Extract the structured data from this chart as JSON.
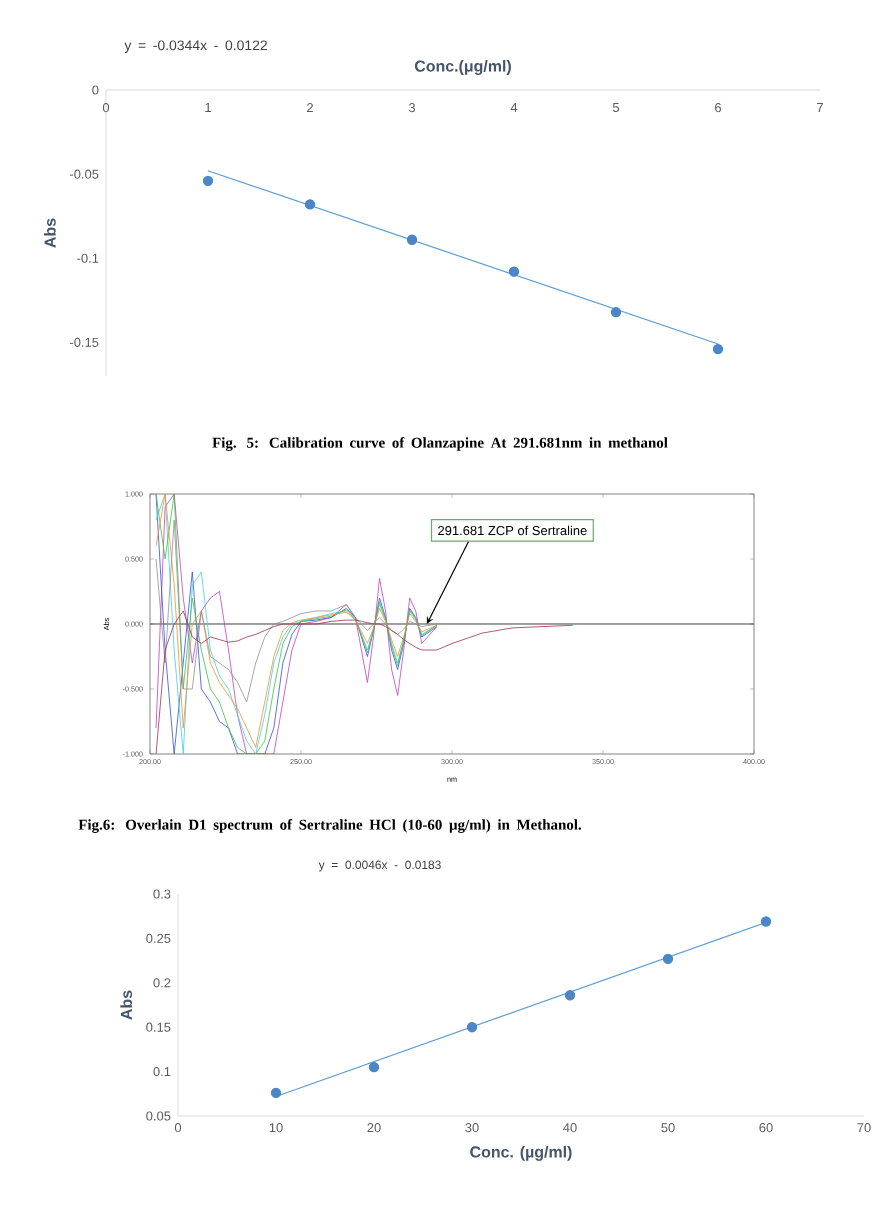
{
  "chart_data": [
    {
      "type": "scatter",
      "xlabel": "Conc.(μg/ml)",
      "ylabel": "Abs",
      "xlim": [
        0,
        7
      ],
      "xticks": [
        0,
        1,
        2,
        3,
        4,
        5,
        6,
        7
      ],
      "ylim": [
        -0.17,
        0
      ],
      "yticks": [
        0,
        -0.05,
        -0.1,
        -0.15
      ],
      "series": [
        {
          "type": "scatter",
          "marker": "circle",
          "color": "#4a86c8",
          "x": [
            1,
            2,
            3,
            4,
            5,
            6
          ],
          "values": [
            -0.054,
            -0.068,
            -0.089,
            -0.108,
            -0.132,
            -0.154
          ]
        },
        {
          "type": "line",
          "marker": "none",
          "color": "#5b9bd5",
          "x": [
            1,
            6
          ],
          "values": [
            -0.048,
            -0.151
          ]
        }
      ],
      "annotations": [
        "y = -0.0344x - 0.0122",
        "Fig. 5: Calibration curve of Olanzapine At 291.681nm in methanol"
      ]
    },
    {
      "type": "line",
      "xlabel": "nm",
      "ylabel": "Abs",
      "xlim": [
        200,
        400
      ],
      "ylim": [
        -1,
        1
      ],
      "xticks": [
        {
          "value": 200,
          "label": "200.00"
        },
        {
          "value": 250,
          "label": "250.00"
        },
        {
          "value": 300,
          "label": "300.00"
        },
        {
          "value": 350,
          "label": "350.00"
        },
        {
          "value": 400,
          "label": "400.00"
        }
      ],
      "yticks": [
        {
          "value": -1,
          "label": "-1.000"
        },
        {
          "value": -0.5,
          "label": "-0.500"
        },
        {
          "value": 0,
          "label": "0.000"
        },
        {
          "value": 0.5,
          "label": "0.500"
        },
        {
          "value": 1,
          "label": "1.000"
        }
      ],
      "x": [
        202,
        205,
        208,
        211,
        214,
        217,
        220,
        223,
        226,
        229,
        232,
        235,
        238,
        241,
        244,
        247,
        250,
        255,
        260,
        265,
        268,
        270,
        272,
        274,
        276,
        278,
        280,
        282,
        284,
        286,
        288,
        290,
        295,
        300,
        310,
        320,
        340
      ],
      "series": [
        {
          "color": "#c040c0",
          "values": [
            -0.8,
            0.9,
            1,
            0.2,
            -0.3,
            0.1,
            0.2,
            0.25,
            -0.2,
            -0.7,
            -1,
            -1,
            -1,
            -1,
            -0.6,
            -0.2,
            0,
            0.02,
            0.05,
            0.15,
            0.05,
            -0.2,
            -0.45,
            -0.1,
            0.35,
            0.1,
            -0.35,
            -0.55,
            -0.2,
            0.2,
            0.1,
            -0.15,
            -0.02,
            null,
            null,
            null,
            null
          ]
        },
        {
          "color": "#3050e0",
          "values": [
            1,
            -0.2,
            -1,
            -0.3,
            0.4,
            -0.5,
            -0.6,
            -0.75,
            -0.8,
            -1,
            -1,
            -1,
            -1,
            -0.8,
            -0.3,
            -0.08,
            0.02,
            0.03,
            0.05,
            0.12,
            0.05,
            -0.1,
            -0.25,
            -0.05,
            0.2,
            0.05,
            -0.2,
            -0.35,
            -0.15,
            0.12,
            0.05,
            -0.1,
            -0.02,
            null,
            null,
            null,
            null
          ]
        },
        {
          "color": "#40d0e0",
          "values": [
            0.8,
            1,
            -0.2,
            -1,
            0.3,
            0.4,
            -0.2,
            -0.4,
            -0.5,
            -0.7,
            -0.9,
            -1,
            -0.7,
            -0.3,
            -0.1,
            0,
            0.02,
            0.05,
            0.08,
            0.1,
            0.04,
            -0.08,
            -0.2,
            -0.04,
            0.15,
            0.03,
            -0.15,
            -0.3,
            -0.12,
            0.1,
            0.03,
            -0.08,
            -0.01,
            null,
            null,
            null,
            null
          ]
        },
        {
          "color": "#40c040",
          "values": [
            1,
            0.5,
            1,
            -0.5,
            0.2,
            -0.2,
            -0.5,
            -0.6,
            -0.8,
            -0.95,
            -1,
            -1,
            -0.9,
            -0.5,
            -0.15,
            -0.02,
            0.02,
            0.04,
            0.06,
            0.11,
            0.04,
            -0.09,
            -0.22,
            -0.05,
            0.17,
            0.04,
            -0.17,
            -0.32,
            -0.13,
            0.11,
            0.04,
            -0.09,
            -0.01,
            null,
            null,
            null,
            null
          ]
        },
        {
          "color": "#f09030",
          "values": [
            0.6,
            1,
            0.3,
            -0.8,
            0,
            0.1,
            -0.3,
            -0.45,
            -0.55,
            -0.65,
            -0.8,
            -0.95,
            -0.6,
            -0.25,
            -0.05,
            0.01,
            0.03,
            0.05,
            0.07,
            0.09,
            0.03,
            -0.06,
            -0.15,
            -0.03,
            0.12,
            0.02,
            -0.12,
            -0.25,
            -0.1,
            0.08,
            0.02,
            -0.06,
            -0.01,
            null,
            null,
            null,
            null
          ]
        },
        {
          "color": "#909090",
          "values": [
            0.5,
            -0.3,
            0.8,
            -0.5,
            -0.5,
            0.1,
            -0.25,
            -0.3,
            -0.35,
            -0.45,
            -0.6,
            -0.3,
            -0.1,
            0,
            0.02,
            0.05,
            0.08,
            0.1,
            0.1,
            0.15,
            0.05,
            0,
            -0.05,
            0,
            0.05,
            0,
            -0.05,
            -0.08,
            -0.04,
            0.02,
            0,
            -0.02,
            0,
            null,
            null,
            null,
            null
          ]
        },
        {
          "color": "#a03050",
          "values": [
            -1,
            -0.2,
            0,
            0.1,
            -0.1,
            -0.15,
            -0.1,
            -0.12,
            -0.14,
            -0.13,
            -0.1,
            -0.08,
            -0.05,
            -0.02,
            0,
            0,
            0,
            0,
            0.02,
            0.03,
            0.03,
            0.02,
            0.01,
            0,
            0,
            -0.02,
            -0.05,
            -0.08,
            -0.12,
            -0.15,
            -0.18,
            -0.2,
            -0.2,
            -0.15,
            -0.07,
            -0.03,
            -0.01
          ]
        }
      ],
      "ref_lines": [
        {
          "axis": "y",
          "value": 0,
          "color": "#404040"
        }
      ],
      "annotations": [
        {
          "text": "291.681 ZCP of Sertraline",
          "x": 291.681,
          "y": 0
        },
        "Fig.6: Overlain D1 spectrum of Sertraline HCl  (10-60 µg/ml) in Methanol."
      ]
    },
    {
      "type": "scatter",
      "xlabel": "Conc. (µg/ml)",
      "ylabel": "Abs",
      "xlim": [
        0,
        70
      ],
      "xticks": [
        0,
        10,
        20,
        30,
        40,
        50,
        60,
        70
      ],
      "ylim": [
        0.05,
        0.3
      ],
      "yticks": [
        0.05,
        0.1,
        0.15,
        0.2,
        0.25,
        0.3
      ],
      "series": [
        {
          "type": "scatter",
          "marker": "circle",
          "color": "#4a86c8",
          "x": [
            10,
            20,
            30,
            40,
            50,
            60
          ],
          "values": [
            0.076,
            0.105,
            0.15,
            0.186,
            0.227,
            0.269
          ]
        },
        {
          "type": "line",
          "marker": "none",
          "color": "#5b9bd5",
          "x": [
            10,
            60
          ],
          "values": [
            0.072,
            0.268
          ]
        }
      ],
      "annotations": [
        "y = 0.0046x - 0.0183"
      ]
    }
  ]
}
